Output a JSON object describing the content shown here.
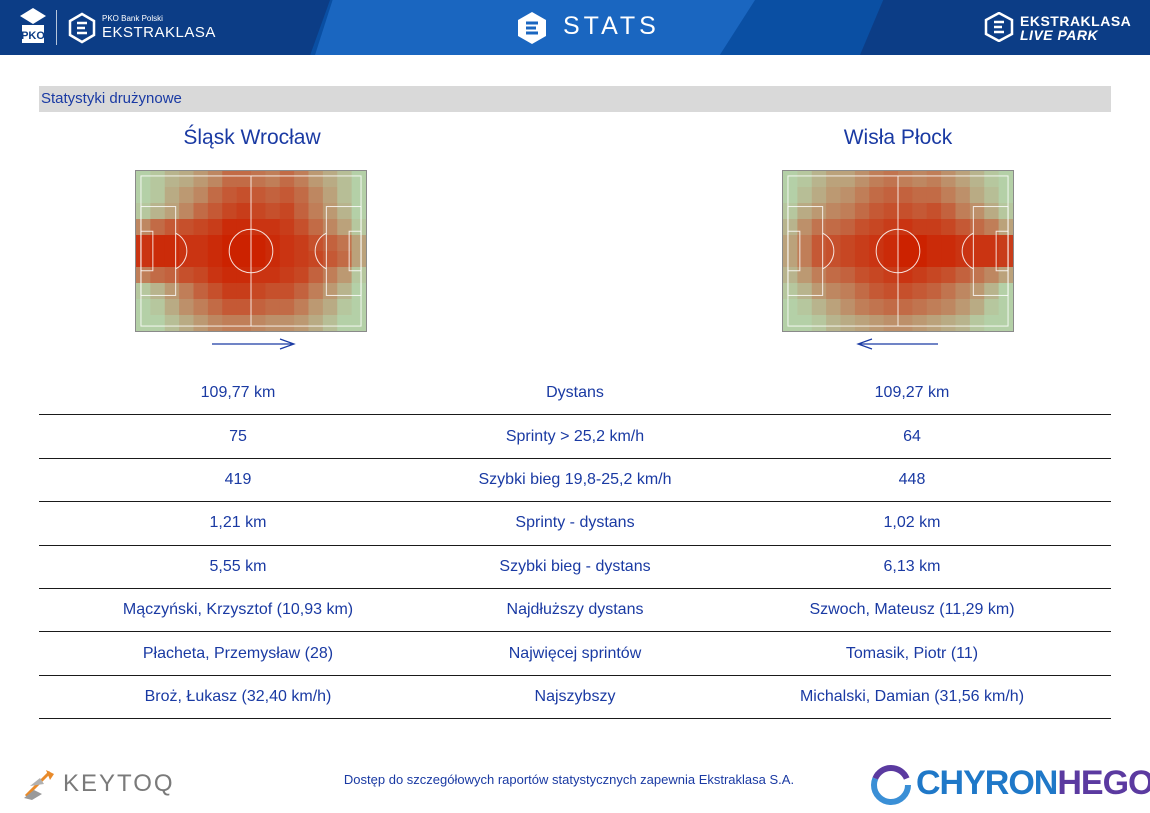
{
  "header": {
    "pko_label": "PKO Bank Polski",
    "league_label": "EKSTRAKLASA",
    "stats_label": "STATS",
    "live_park_line1": "EKSTRAKLASA",
    "live_park_line2": "LIVE PARK",
    "icons": [
      "pko-logo-icon",
      "ekstraklasa-logo-icon",
      "stats-logo-icon",
      "live-park-logo-icon"
    ]
  },
  "section": {
    "title": "Statystyki drużynowe"
  },
  "teams": {
    "left": {
      "name": "Śląsk Wrocław",
      "direction": "right"
    },
    "right": {
      "name": "Wisła Płock",
      "direction": "left"
    }
  },
  "heatmaps": {
    "left": [
      [
        0.05,
        0.1,
        0.2,
        0.25,
        0.35,
        0.45,
        0.6,
        0.6,
        0.55,
        0.5,
        0.6,
        0.5,
        0.35,
        0.25,
        0.15,
        0.05
      ],
      [
        0.05,
        0.1,
        0.25,
        0.35,
        0.45,
        0.6,
        0.7,
        0.75,
        0.7,
        0.65,
        0.7,
        0.6,
        0.45,
        0.3,
        0.15,
        0.05
      ],
      [
        0.1,
        0.2,
        0.3,
        0.45,
        0.6,
        0.7,
        0.8,
        0.85,
        0.8,
        0.75,
        0.8,
        0.65,
        0.5,
        0.35,
        0.2,
        0.05
      ],
      [
        0.45,
        0.6,
        0.7,
        0.75,
        0.8,
        0.85,
        0.95,
        0.95,
        0.9,
        0.9,
        0.85,
        0.75,
        0.6,
        0.45,
        0.3,
        0.1
      ],
      [
        0.9,
        0.95,
        0.95,
        0.9,
        0.9,
        0.95,
        1.0,
        1.0,
        1.0,
        0.95,
        0.9,
        0.85,
        0.75,
        0.65,
        0.55,
        0.3
      ],
      [
        0.9,
        0.95,
        0.95,
        0.9,
        0.9,
        0.95,
        1.0,
        1.0,
        1.0,
        0.95,
        0.9,
        0.85,
        0.8,
        0.7,
        0.6,
        0.3
      ],
      [
        0.5,
        0.6,
        0.65,
        0.75,
        0.8,
        0.9,
        0.95,
        0.95,
        0.9,
        0.9,
        0.85,
        0.8,
        0.65,
        0.5,
        0.35,
        0.1
      ],
      [
        0.1,
        0.2,
        0.35,
        0.5,
        0.65,
        0.75,
        0.85,
        0.85,
        0.8,
        0.75,
        0.75,
        0.65,
        0.5,
        0.35,
        0.2,
        0.05
      ],
      [
        0.05,
        0.1,
        0.25,
        0.4,
        0.5,
        0.6,
        0.7,
        0.7,
        0.65,
        0.6,
        0.6,
        0.5,
        0.35,
        0.25,
        0.1,
        0.05
      ],
      [
        0.05,
        0.05,
        0.15,
        0.25,
        0.35,
        0.45,
        0.5,
        0.5,
        0.45,
        0.4,
        0.4,
        0.35,
        0.25,
        0.15,
        0.05,
        0.05
      ]
    ],
    "right": [
      [
        0.05,
        0.1,
        0.2,
        0.3,
        0.3,
        0.4,
        0.5,
        0.55,
        0.5,
        0.45,
        0.5,
        0.4,
        0.3,
        0.2,
        0.1,
        0.05
      ],
      [
        0.05,
        0.15,
        0.25,
        0.35,
        0.4,
        0.5,
        0.6,
        0.65,
        0.65,
        0.6,
        0.6,
        0.5,
        0.4,
        0.25,
        0.15,
        0.05
      ],
      [
        0.1,
        0.25,
        0.35,
        0.45,
        0.5,
        0.6,
        0.7,
        0.75,
        0.75,
        0.7,
        0.75,
        0.65,
        0.5,
        0.4,
        0.25,
        0.1
      ],
      [
        0.2,
        0.4,
        0.55,
        0.6,
        0.65,
        0.75,
        0.8,
        0.85,
        0.9,
        0.85,
        0.85,
        0.8,
        0.7,
        0.6,
        0.5,
        0.3
      ],
      [
        0.3,
        0.5,
        0.7,
        0.75,
        0.8,
        0.85,
        0.9,
        0.95,
        1.0,
        1.0,
        0.95,
        0.95,
        0.9,
        0.9,
        0.9,
        0.85
      ],
      [
        0.3,
        0.5,
        0.7,
        0.75,
        0.8,
        0.85,
        0.9,
        0.95,
        1.0,
        1.0,
        0.95,
        0.95,
        0.9,
        0.9,
        0.9,
        0.85
      ],
      [
        0.2,
        0.35,
        0.5,
        0.6,
        0.65,
        0.75,
        0.8,
        0.85,
        0.9,
        0.85,
        0.8,
        0.75,
        0.65,
        0.55,
        0.45,
        0.3
      ],
      [
        0.1,
        0.2,
        0.35,
        0.45,
        0.5,
        0.6,
        0.7,
        0.75,
        0.75,
        0.7,
        0.65,
        0.55,
        0.45,
        0.35,
        0.2,
        0.05
      ],
      [
        0.05,
        0.1,
        0.2,
        0.3,
        0.4,
        0.5,
        0.55,
        0.6,
        0.6,
        0.55,
        0.5,
        0.45,
        0.35,
        0.25,
        0.1,
        0.05
      ],
      [
        0.05,
        0.05,
        0.1,
        0.2,
        0.25,
        0.3,
        0.35,
        0.4,
        0.4,
        0.35,
        0.3,
        0.25,
        0.2,
        0.1,
        0.05,
        0.05
      ]
    ]
  },
  "stats": [
    {
      "left": "109,77 km",
      "label": "Dystans",
      "right": "109,27 km"
    },
    {
      "left": "75",
      "label": "Sprinty > 25,2 km/h",
      "right": "64"
    },
    {
      "left": "419",
      "label": "Szybki bieg 19,8-25,2 km/h",
      "right": "448"
    },
    {
      "left": "1,21 km",
      "label": "Sprinty - dystans",
      "right": "1,02 km"
    },
    {
      "left": "5,55 km",
      "label": "Szybki bieg - dystans",
      "right": "6,13 km"
    },
    {
      "left": "Mączyński, Krzysztof (10,93 km)",
      "label": "Najdłuższy dystans",
      "right": "Szwoch, Mateusz (11,29 km)"
    },
    {
      "left": "Płacheta, Przemysław (28)",
      "label": "Najwięcej sprintów",
      "right": "Tomasik, Piotr (11)"
    },
    {
      "left": "Broż, Łukasz (32,40 km/h)",
      "label": "Najszybszy",
      "right": "Michalski, Damian (31,56 km/h)"
    }
  ],
  "footer": {
    "note": "Dostęp do szczegółowych raportów statystycznych zapewnia Ekstraklasa S.A.",
    "keytoq": "KEYTOQ",
    "chyron_a": "CHYRON",
    "chyron_b": "HEGO"
  },
  "colors": {
    "header_blue": "#0a4fa3",
    "text_blue": "#1a3aa3",
    "pitch_green": "#b3d9b0",
    "heat_red": "#cc2200",
    "section_gray": "#d9d9d9"
  }
}
